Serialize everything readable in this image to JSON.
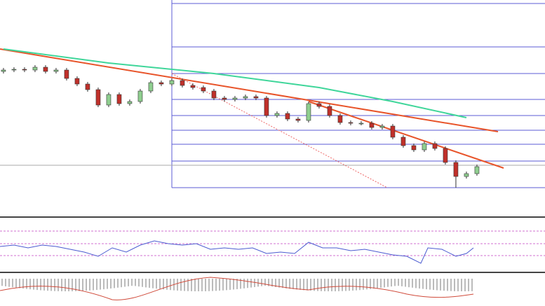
{
  "chart_data": {
    "type": "candlestick",
    "open": [
      208,
      210,
      211,
      210,
      214,
      208,
      210,
      198,
      190,
      182,
      160,
      175,
      162,
      165,
      180,
      192,
      190,
      195,
      188,
      185,
      180,
      170,
      168,
      170,
      172,
      170,
      145,
      148,
      140,
      138,
      162,
      158,
      145,
      135,
      134,
      134,
      128,
      130,
      114,
      102,
      96,
      105,
      98,
      78,
      58,
      62
    ],
    "high": [
      213,
      214,
      214,
      217,
      217,
      213,
      213,
      201,
      193,
      185,
      178,
      178,
      168,
      183,
      195,
      195,
      198,
      198,
      191,
      188,
      183,
      173,
      173,
      175,
      175,
      173,
      151,
      151,
      143,
      165,
      165,
      161,
      148,
      138,
      137,
      137,
      133,
      133,
      117,
      105,
      108,
      108,
      101,
      81,
      65,
      75
    ],
    "low": [
      205,
      207,
      207,
      207,
      205,
      205,
      195,
      187,
      179,
      157,
      157,
      159,
      159,
      162,
      177,
      187,
      187,
      185,
      182,
      177,
      167,
      165,
      165,
      167,
      167,
      142,
      142,
      137,
      135,
      135,
      155,
      142,
      132,
      131,
      131,
      125,
      125,
      111,
      99,
      93,
      93,
      95,
      75,
      42,
      55,
      59
    ],
    "close": [
      210,
      211,
      210,
      214,
      208,
      210,
      198,
      190,
      182,
      160,
      175,
      162,
      165,
      180,
      192,
      190,
      195,
      188,
      185,
      180,
      170,
      168,
      170,
      172,
      170,
      145,
      148,
      140,
      138,
      162,
      158,
      145,
      135,
      134,
      134,
      128,
      130,
      114,
      102,
      96,
      105,
      98,
      78,
      58,
      62,
      72
    ],
    "moving_average": {
      "color": "#3fd69a",
      "x": [
        0,
        10,
        20,
        30,
        37,
        44
      ],
      "values": [
        240,
        220,
        205,
        185,
        165,
        142
      ]
    },
    "up_color": "#8fcf8f",
    "down_color": "#c0302a",
    "xlim": [
      -0.33,
      51.47
    ],
    "ylim": [
      0,
      310
    ]
  }
}
